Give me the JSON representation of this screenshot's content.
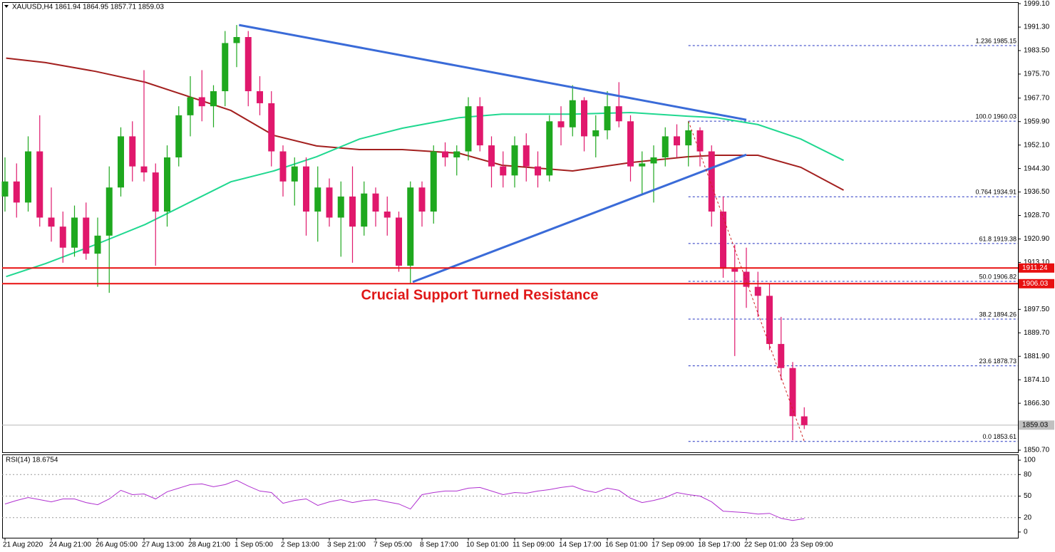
{
  "chart_data": [
    {
      "type": "candlestick",
      "title": "XAUUSD,H4  1861.94 1864.95 1857.71 1859.03",
      "annotation": "Crucial Support Turned Resistance",
      "categories": [
        "21 Aug 2020",
        null,
        null,
        null,
        "24 Aug 21:00",
        null,
        null,
        null,
        "26 Aug 05:00",
        null,
        null,
        null,
        "27 Aug 13:00",
        null,
        null,
        null,
        "28 Aug 21:00",
        null,
        null,
        null,
        "1 Sep 05:00",
        null,
        null,
        null,
        "2 Sep 13:00",
        null,
        null,
        null,
        "3 Sep 21:00",
        null,
        null,
        null,
        "7 Sep 05:00",
        null,
        null,
        null,
        "8 Sep 17:00",
        null,
        null,
        null,
        "10 Sep 01:00",
        null,
        null,
        null,
        "11 Sep 09:00",
        null,
        null,
        null,
        "14 Sep 17:00",
        null,
        null,
        null,
        "16 Sep 01:00",
        null,
        null,
        null,
        "17 Sep 09:00",
        null,
        null,
        null,
        "18 Sep 17:00",
        null,
        null,
        null,
        "22 Sep 01:00",
        null,
        null,
        null,
        "23 Sep 09:00",
        null
      ],
      "candles": [
        [
          1935,
          1948,
          1930,
          1940
        ],
        [
          1940,
          1946,
          1928,
          1933
        ],
        [
          1933,
          1955,
          1930,
          1950
        ],
        [
          1950,
          1962,
          1925,
          1928
        ],
        [
          1928,
          1938,
          1920,
          1925
        ],
        [
          1925,
          1930,
          1913,
          1918
        ],
        [
          1918,
          1932,
          1915,
          1928
        ],
        [
          1928,
          1933,
          1914,
          1916
        ],
        [
          1916,
          1928,
          1905,
          1922
        ],
        [
          1922,
          1945,
          1903,
          1938
        ],
        [
          1938,
          1958,
          1935,
          1955
        ],
        [
          1955,
          1960,
          1940,
          1945
        ],
        [
          1945,
          1977,
          1940,
          1943
        ],
        [
          1943,
          1946,
          1912,
          1930
        ],
        [
          1930,
          1952,
          1925,
          1948
        ],
        [
          1948,
          1965,
          1945,
          1962
        ],
        [
          1962,
          1975,
          1955,
          1968
        ],
        [
          1968,
          1977,
          1960,
          1965
        ],
        [
          1965,
          1972,
          1958,
          1970
        ],
        [
          1970,
          1990,
          1965,
          1986
        ],
        [
          1986,
          1992,
          1978,
          1988
        ],
        [
          1988,
          1990,
          1965,
          1970
        ],
        [
          1970,
          1975,
          1962,
          1966
        ],
        [
          1966,
          1970,
          1945,
          1950
        ],
        [
          1950,
          1952,
          1935,
          1940
        ],
        [
          1940,
          1948,
          1932,
          1945
        ],
        [
          1945,
          1948,
          1922,
          1930
        ],
        [
          1930,
          1945,
          1920,
          1938
        ],
        [
          1938,
          1941,
          1925,
          1928
        ],
        [
          1928,
          1940,
          1915,
          1935
        ],
        [
          1935,
          1945,
          1913,
          1925
        ],
        [
          1925,
          1940,
          1922,
          1936
        ],
        [
          1936,
          1938,
          1925,
          1930
        ],
        [
          1930,
          1935,
          1922,
          1928
        ],
        [
          1928,
          1930,
          1910,
          1912
        ],
        [
          1912,
          1940,
          1906,
          1938
        ],
        [
          1938,
          1940,
          1925,
          1930
        ],
        [
          1930,
          1952,
          1926,
          1950
        ],
        [
          1950,
          1953,
          1945,
          1948
        ],
        [
          1948,
          1952,
          1942,
          1950
        ],
        [
          1950,
          1968,
          1947,
          1965
        ],
        [
          1965,
          1968,
          1950,
          1952
        ],
        [
          1952,
          1955,
          1938,
          1945
        ],
        [
          1945,
          1950,
          1938,
          1942
        ],
        [
          1942,
          1955,
          1938,
          1952
        ],
        [
          1952,
          1956,
          1940,
          1945
        ],
        [
          1945,
          1950,
          1938,
          1942
        ],
        [
          1942,
          1962,
          1940,
          1960
        ],
        [
          1960,
          1965,
          1952,
          1958
        ],
        [
          1958,
          1972,
          1955,
          1967
        ],
        [
          1967,
          1968,
          1950,
          1955
        ],
        [
          1955,
          1962,
          1948,
          1957
        ],
        [
          1957,
          1970,
          1954,
          1965
        ],
        [
          1965,
          1973,
          1958,
          1960
        ],
        [
          1960,
          1962,
          1940,
          1945
        ],
        [
          1945,
          1950,
          1936,
          1946
        ],
        [
          1946,
          1952,
          1933,
          1948
        ],
        [
          1948,
          1958,
          1945,
          1955
        ],
        [
          1955,
          1959,
          1948,
          1952
        ],
        [
          1952,
          1960,
          1945,
          1957
        ],
        [
          1957,
          1958,
          1945,
          1950
        ],
        [
          1950,
          1952,
          1925,
          1930
        ],
        [
          1930,
          1935,
          1908,
          1911
        ],
        [
          1911,
          1919,
          1882,
          1910
        ],
        [
          1910,
          1918,
          1898,
          1905
        ],
        [
          1905,
          1910,
          1895,
          1902
        ],
        [
          1902,
          1906,
          1884,
          1886
        ],
        [
          1886,
          1895,
          1874,
          1878
        ],
        [
          1878,
          1880,
          1854,
          1862
        ],
        [
          1861.94,
          1864.95,
          1857.71,
          1859.03
        ]
      ],
      "bull_color": "#1fa81f",
      "bear_color": "#e0186c",
      "ylim": [
        1850.0,
        1999.6
      ],
      "yticks": [
        {
          "value": 1999.1,
          "label": "1999.10"
        },
        {
          "value": 1991.3,
          "label": "1991.30"
        },
        {
          "value": 1983.5,
          "label": "1983.50"
        },
        {
          "value": 1975.7,
          "label": "1975.70"
        },
        {
          "value": 1967.7,
          "label": "1967.70"
        },
        {
          "value": 1959.9,
          "label": "1959.90"
        },
        {
          "value": 1952.1,
          "label": "1952.10"
        },
        {
          "value": 1944.3,
          "label": "1944.30"
        },
        {
          "value": 1936.5,
          "label": "1936.50"
        },
        {
          "value": 1928.7,
          "label": "1928.70"
        },
        {
          "value": 1920.9,
          "label": "1920.90"
        },
        {
          "value": 1913.1,
          "label": "1913.10"
        },
        {
          "value": 1897.5,
          "label": "1897.50"
        },
        {
          "value": 1889.7,
          "label": "1889.70"
        },
        {
          "value": 1881.9,
          "label": "1881.90"
        },
        {
          "value": 1874.1,
          "label": "1874.10"
        },
        {
          "value": 1866.3,
          "label": "1866.30"
        },
        {
          "value": 1850.7,
          "label": "1850.70"
        }
      ],
      "moving_averages": [
        {
          "color": "#a3201f",
          "x": [
            0.1,
            3.5,
            7.8,
            12.1,
            15.8,
            19.5,
            23.2,
            26.9,
            30.6,
            34.3,
            39.2,
            42.9,
            49,
            54,
            58.9,
            61.4,
            65,
            68.7,
            72.4
          ],
          "values": [
            1981,
            1979.5,
            1976.6,
            1973,
            1968.3,
            1963.6,
            1955.3,
            1951.8,
            1950.6,
            1950.6,
            1949.4,
            1945.4,
            1943.5,
            1946.3,
            1948.2,
            1948.7,
            1948.7,
            1944.7,
            1937.1
          ]
        },
        {
          "color": "#20d890",
          "x": [
            0.1,
            3.5,
            7.8,
            12.1,
            15.8,
            19.5,
            23.2,
            26.9,
            30.6,
            34.3,
            39.2,
            42.9,
            49,
            54,
            58.9,
            61.4,
            65,
            68.7,
            72.4
          ],
          "values": [
            1908.4,
            1912.7,
            1919,
            1925.7,
            1932.8,
            1939.9,
            1943.5,
            1948.2,
            1954.1,
            1957.7,
            1961.2,
            1962.4,
            1962.4,
            1962.9,
            1961.7,
            1961.2,
            1958.9,
            1954.1,
            1947
          ]
        }
      ],
      "trend_lines": [
        {
          "color": "#3a6bd8",
          "x": [
            20.2,
            64.0
          ],
          "values": [
            1992.0,
            1960.5
          ]
        },
        {
          "color": "#3a6bd8",
          "x": [
            35.2,
            64.0
          ],
          "values": [
            1906.6,
            1948.9
          ]
        }
      ],
      "fib_line": {
        "color": "#d02020",
        "x": [
          59,
          69
        ],
        "values": [
          1960.03,
          1853.61
        ]
      },
      "fib_levels": [
        {
          "value": 1985.15,
          "label": "1.236 1985.15"
        },
        {
          "value": 1960.03,
          "label": "100.0 1960.03"
        },
        {
          "value": 1934.91,
          "label": "0.764 1934.91"
        },
        {
          "value": 1919.38,
          "label": "61.8 1919.38"
        },
        {
          "value": 1906.82,
          "label": "50.0 1906.82"
        },
        {
          "value": 1894.26,
          "label": "38.2 1894.26"
        },
        {
          "value": 1878.73,
          "label": "23.6 1878.73"
        },
        {
          "value": 1853.61,
          "label": "0.0 1853.61"
        }
      ],
      "fib_color": "#2030c0",
      "levels": [
        {
          "value": 1911.24,
          "color": "#e81010"
        },
        {
          "value": 1906.03,
          "color": "#e81010"
        }
      ],
      "last_price": 1859.03
    },
    {
      "type": "line",
      "title": "RSI(14) 18.6754",
      "color": "#b030d0",
      "values": [
        39,
        44,
        48,
        45,
        42,
        46,
        46,
        41,
        38,
        46,
        58,
        52,
        53,
        46,
        56,
        61,
        66,
        67,
        63,
        66,
        72,
        64,
        57,
        55,
        40,
        44,
        46,
        37,
        42,
        45,
        41,
        44,
        45,
        42,
        39,
        32,
        52,
        55,
        57,
        57,
        61,
        62,
        57,
        52,
        55,
        54,
        57,
        59,
        62,
        64,
        58,
        55,
        61,
        58,
        47,
        41,
        44,
        48,
        55,
        52,
        50,
        42,
        29,
        28,
        27,
        25,
        26,
        19,
        16,
        18.7
      ],
      "ylim": [
        -8,
        108
      ],
      "yticks": [
        100,
        80,
        50,
        20,
        0
      ]
    }
  ]
}
